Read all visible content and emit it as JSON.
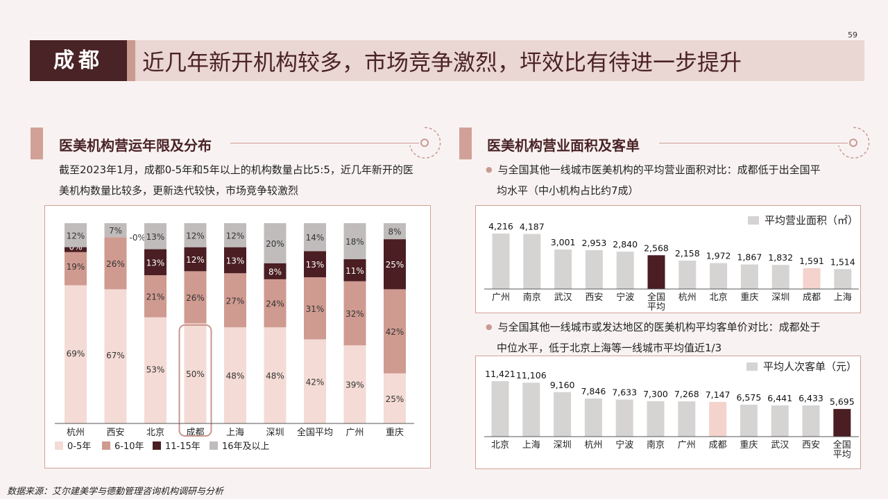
{
  "page_number": "59",
  "title": {
    "city": "成都",
    "text": "近几年新开机构较多，市场竞争激烈，坪效比有待进一步提升"
  },
  "left": {
    "section_title": "医美机构营运年限及分布",
    "description_line1": "截至2023年1月，成都0-5年和5年以上的机构数量占比5:5，近几年新开的医",
    "description_line2": "美机构数量比较多，更新迭代较快，市场竞争较激烈"
  },
  "right": {
    "section_title": "医美机构营业面积及客单",
    "bullet1_line1": "与全国其他一线城市医美机构的平均营业面积对比：成都低于出全国平",
    "bullet1_line2": "均水平（中小机构占比约7成）",
    "bullet2_line1": "与全国其他一线城市或发达地区的医美机构平均客单价对比：成都处于",
    "bullet2_line2": "中位水平，低于北京上海等一线城市平均值近1/3"
  },
  "source": "数据来源：艾尔建美学与德勤管理咨询机构调研与分析",
  "colors": {
    "c1": "#f4dbd5",
    "c2": "#cf9a90",
    "c3": "#4a1e22",
    "c4": "#c0bcbc",
    "highlight": "#f3d3cc",
    "dark": "#4a1e22",
    "grey": "#d6d3d3"
  },
  "chart_data": [
    {
      "type": "bar",
      "stacked": true,
      "categories": [
        "杭州",
        "西安",
        "北京",
        "成都",
        "上海",
        "深圳",
        "全国平均",
        "广州",
        "重庆"
      ],
      "series": [
        {
          "name": "0-5年",
          "values": [
            69,
            67,
            53,
            50,
            48,
            48,
            42,
            39,
            25
          ],
          "labels": [
            "69%",
            "67%",
            "53%",
            "50%",
            "48%",
            "48%",
            "42%",
            "39%",
            "25%"
          ]
        },
        {
          "name": "6-10年",
          "values": [
            19,
            26,
            21,
            26,
            27,
            24,
            31,
            32,
            42
          ],
          "labels": [
            "19%",
            "26%",
            "21%",
            "26%",
            "27%",
            "24%",
            "31%",
            "32%",
            "42%"
          ]
        },
        {
          "name": "11-15年",
          "values": [
            0,
            0,
            13,
            12,
            13,
            8,
            13,
            11,
            25
          ],
          "labels": [
            "0%",
            "-0%",
            "13%",
            "12%",
            "13%",
            "8%",
            "13%",
            "11%",
            "25%"
          ]
        },
        {
          "name": "16年及以上",
          "values": [
            12,
            7,
            13,
            12,
            12,
            20,
            14,
            18,
            8
          ],
          "labels": [
            "12%",
            "7%",
            "13%",
            "12%",
            "12%",
            "20%",
            "14%",
            "18%",
            "8%"
          ]
        }
      ],
      "highlight_category": "成都"
    },
    {
      "type": "bar",
      "legend": "平均营业面积（㎡）",
      "categories": [
        "广州",
        "南京",
        "武汉",
        "西安",
        "宁波",
        "全国平均",
        "杭州",
        "北京",
        "重庆",
        "深圳",
        "成都",
        "上海"
      ],
      "values": [
        4216,
        4187,
        3001,
        2953,
        2840,
        2568,
        2158,
        1972,
        1867,
        1832,
        1591,
        1514
      ],
      "labels": [
        "4,216",
        "4,187",
        "3,001",
        "2,953",
        "2,840",
        "2,568",
        "2,158",
        "1,972",
        "1,867",
        "1,832",
        "1,591",
        "1,514"
      ],
      "dark_category": "全国平均",
      "highlight_category": "成都"
    },
    {
      "type": "bar",
      "legend": "平均人次客单（元）",
      "categories": [
        "北京",
        "上海",
        "深圳",
        "杭州",
        "宁波",
        "南京",
        "广州",
        "成都",
        "重庆",
        "武汉",
        "西安",
        "全国平均"
      ],
      "values": [
        11421,
        11106,
        9160,
        7846,
        7633,
        7300,
        7268,
        7147,
        6575,
        6441,
        6433,
        5695
      ],
      "labels": [
        "11,421",
        "11,106",
        "9,160",
        "7,846",
        "7,633",
        "7,300",
        "7,268",
        "7,147",
        "6,575",
        "6,441",
        "6,433",
        "5,695"
      ],
      "dark_category": "全国平均",
      "highlight_category": "成都"
    }
  ]
}
